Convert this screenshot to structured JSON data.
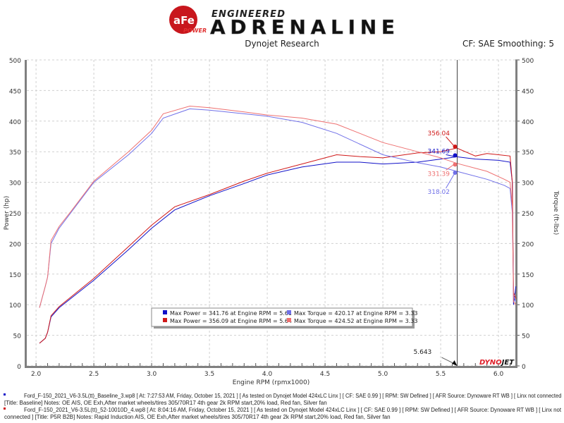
{
  "header": {
    "logo_brand": "aFe POWER",
    "logo_tagline": "ENGINEERED",
    "logo_title": "ADRENALINE",
    "subtitle": "Dynojet Research",
    "cf_info": "CF: SAE Smoothing: 5"
  },
  "colors": {
    "baseline_power": "#1010c8",
    "baseline_torque": "#7070e8",
    "run2_power": "#d01818",
    "run2_torque": "#ee7070",
    "axis": "#808080",
    "grid": "#d0d0d0"
  },
  "chart_data": {
    "type": "line",
    "xlabel": "Engine RPM (rpmx1000)",
    "ylabel": "Power (hp)",
    "y2label": "Torque (ft-lbs)",
    "xlim": [
      1.92,
      6.146
    ],
    "ylim": [
      0,
      500
    ],
    "y2lim": [
      0,
      500
    ],
    "xticks": [
      "2.0",
      "2.5",
      "3.0",
      "3.5",
      "4.0",
      "4.5",
      "5.0",
      "5.5",
      "6.0"
    ],
    "yticks": [
      "0",
      "50",
      "100",
      "150",
      "200",
      "250",
      "300",
      "350",
      "400",
      "450",
      "500"
    ],
    "grid": true,
    "cursor": {
      "x": 5.643,
      "label": "5.643"
    },
    "series": [
      {
        "key": "baseline_power",
        "x": [
          2.03,
          2.08,
          2.1,
          2.13,
          2.2,
          2.5,
          2.8,
          3.0,
          3.2,
          3.5,
          3.8,
          4.0,
          4.3,
          4.6,
          4.8,
          5.0,
          5.3,
          5.5,
          5.64,
          5.8,
          6.0,
          6.1,
          6.12,
          6.13,
          6.15
        ],
        "y": [
          37,
          45,
          55,
          80,
          95,
          140,
          190,
          225,
          255,
          278,
          298,
          312,
          325,
          333,
          333,
          330,
          333,
          338,
          341.7,
          338,
          336,
          333,
          300,
          100,
          130
        ]
      },
      {
        "key": "run2_power",
        "x": [
          2.03,
          2.08,
          2.1,
          2.13,
          2.2,
          2.5,
          2.8,
          3.0,
          3.2,
          3.5,
          3.8,
          4.0,
          4.3,
          4.6,
          4.8,
          5.0,
          5.3,
          5.5,
          5.64,
          5.8,
          5.9,
          6.0,
          6.1,
          6.12,
          6.13,
          6.15
        ],
        "y": [
          37,
          45,
          55,
          82,
          97,
          143,
          195,
          230,
          260,
          280,
          302,
          315,
          330,
          345,
          342,
          340,
          348,
          350,
          356,
          343,
          347,
          345,
          343,
          300,
          120,
          110
        ]
      },
      {
        "key": "baseline_torque",
        "x": [
          2.03,
          2.08,
          2.1,
          2.13,
          2.2,
          2.3,
          2.5,
          2.8,
          3.0,
          3.1,
          3.33,
          3.5,
          3.8,
          4.0,
          4.3,
          4.6,
          5.0,
          5.3,
          5.5,
          5.64,
          5.9,
          6.05,
          6.1,
          6.12,
          6.13,
          6.15
        ],
        "y": [
          95,
          130,
          145,
          200,
          225,
          250,
          300,
          345,
          380,
          405,
          420,
          418,
          412,
          408,
          398,
          380,
          345,
          332,
          325,
          318,
          305,
          295,
          290,
          250,
          115,
          105
        ]
      },
      {
        "key": "run2_torque",
        "x": [
          2.03,
          2.08,
          2.1,
          2.13,
          2.2,
          2.3,
          2.5,
          2.8,
          3.0,
          3.1,
          3.33,
          3.5,
          3.8,
          4.0,
          4.3,
          4.6,
          5.0,
          5.3,
          5.5,
          5.64,
          5.9,
          6.05,
          6.1,
          6.12,
          6.13,
          6.15
        ],
        "y": [
          95,
          130,
          145,
          205,
          228,
          252,
          302,
          350,
          385,
          412,
          424.5,
          422,
          415,
          410,
          405,
          395,
          365,
          350,
          340,
          331,
          318,
          305,
          300,
          260,
          105,
          100
        ]
      }
    ],
    "markers": [
      {
        "label": "356.04",
        "key": "run2_power",
        "y": 356.04
      },
      {
        "label": "341.69",
        "key": "baseline_power",
        "y": 341.69
      },
      {
        "label": "331.39",
        "key": "run2_torque",
        "y": 331.39
      },
      {
        "label": "318.02",
        "key": "baseline_torque",
        "y": 318.02
      }
    ],
    "legend": {
      "placement": "bottom-center",
      "entries": [
        {
          "key": "baseline_power",
          "text": "Max Power = 341.76 at Engine RPM = 5.61"
        },
        {
          "key": "baseline_torque",
          "text": "Max Torque = 420.17 at Engine RPM = 3.33"
        },
        {
          "key": "run2_power",
          "text": "Max Power = 356.09 at Engine RPM = 5.64"
        },
        {
          "key": "run2_torque",
          "text": "Max Torque = 424.52 at Engine RPM = 3.33"
        }
      ]
    },
    "watermark": "DYNOJET"
  },
  "footer": {
    "run1_line1": "Ford_F-150_2021_V6-3.5L(tt)_Baseline_3.wp8 [ At: 7:27:53 AM, Friday, October 15, 2021 ] [ As tested on Dynojet Model 424xLC Linx ] [ CF: SAE 0.99 ] [ RPM: SW Defined ] [ AFR Source: Dynoware RT WB ] [ Linx not connected",
    "run1_line2": "[Title: Baseline]  Notes: OE AIS, OE Exh,After market wheels/tires 305/70R17 4th gear 2k RPM start,20% load, Red fan, Silver fan",
    "run2_line1": "Ford_F-150_2021_V6-3.5L(tt)_52-10010D_4.wp8 [ At: 8:04:16 AM, Friday, October 15, 2021 ] [ As tested on Dynojet Model 424xLC Linx ] [ CF: SAE 0.99 ] [ RPM: SW Defined ] [ AFR Source: Dynoware RT WB ] [ Linx not",
    "run2_line2": "connected ] [Title: P5R B2B]  Notes: Rapid Induction AIS, OE Exh,After market wheels/tires 305/70R17 4th gear 2k RPM start,20% load, Red fan, Silver fan"
  }
}
